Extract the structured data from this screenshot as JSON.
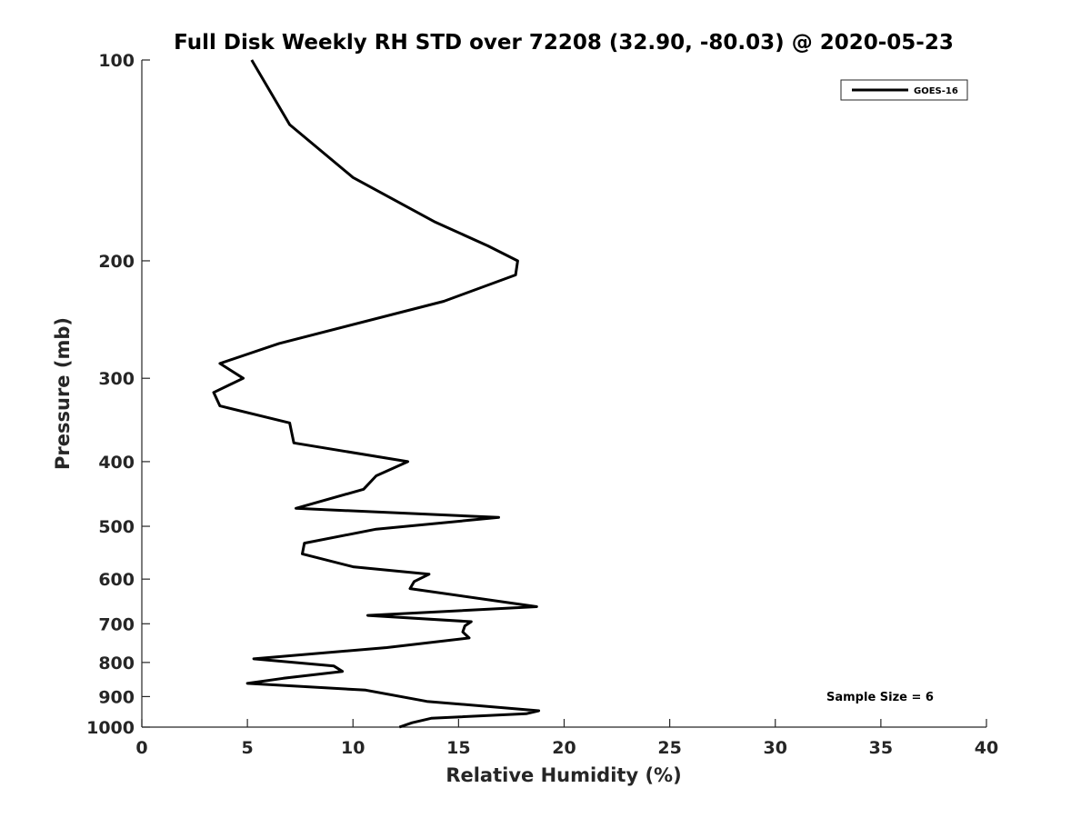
{
  "chart_data": {
    "type": "line",
    "title": "Full Disk Weekly RH STD over 72208 (32.90, -80.03) @ 2020-05-23",
    "xlabel": "Relative Humidity (%)",
    "ylabel": "Pressure (mb)",
    "xlim": [
      0,
      40
    ],
    "ylim": [
      100,
      1000
    ],
    "y_scale": "log",
    "y_reversed": true,
    "x_ticks": [
      0,
      5,
      10,
      15,
      20,
      25,
      30,
      35,
      40
    ],
    "y_ticks": [
      100,
      200,
      300,
      400,
      500,
      600,
      700,
      800,
      900,
      1000
    ],
    "grid": false,
    "legend_position": "top-right",
    "line_color": "#000000",
    "annotation": "Sample Size = 6",
    "series": [
      {
        "name": "GOES-16",
        "points": [
          [
            5.2,
            100
          ],
          [
            7.0,
            125
          ],
          [
            10.0,
            150
          ],
          [
            13.9,
            175
          ],
          [
            16.4,
            190
          ],
          [
            17.8,
            200
          ],
          [
            17.7,
            210
          ],
          [
            14.3,
            230
          ],
          [
            6.5,
            266
          ],
          [
            3.7,
            285
          ],
          [
            4.8,
            300
          ],
          [
            3.4,
            315
          ],
          [
            3.7,
            330
          ],
          [
            7.0,
            350
          ],
          [
            7.2,
            375
          ],
          [
            12.6,
            400
          ],
          [
            11.1,
            420
          ],
          [
            10.5,
            440
          ],
          [
            7.3,
            470
          ],
          [
            16.9,
            485
          ],
          [
            11.1,
            505
          ],
          [
            7.7,
            530
          ],
          [
            7.6,
            550
          ],
          [
            10.0,
            575
          ],
          [
            13.6,
            590
          ],
          [
            12.9,
            605
          ],
          [
            12.7,
            620
          ],
          [
            18.7,
            660
          ],
          [
            10.7,
            680
          ],
          [
            15.6,
            695
          ],
          [
            15.3,
            705
          ],
          [
            15.2,
            720
          ],
          [
            15.5,
            735
          ],
          [
            11.6,
            760
          ],
          [
            5.3,
            790
          ],
          [
            9.1,
            810
          ],
          [
            9.5,
            825
          ],
          [
            6.7,
            845
          ],
          [
            5.0,
            860
          ],
          [
            10.6,
            880
          ],
          [
            13.5,
            915
          ],
          [
            18.8,
            945
          ],
          [
            18.2,
            955
          ],
          [
            13.7,
            970
          ],
          [
            12.8,
            985
          ],
          [
            12.2,
            1000
          ]
        ]
      }
    ]
  }
}
